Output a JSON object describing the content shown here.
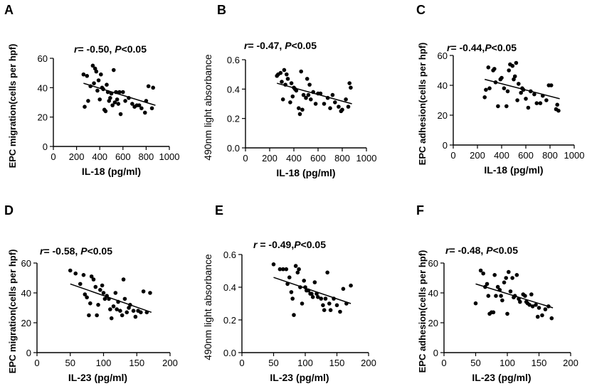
{
  "chart_data": [
    {
      "panel": "A",
      "type": "scatter",
      "stat_text": {
        "r_label": "r",
        "r_value": "= -0.50, ",
        "p_label": "P",
        "p_value": "<0.05"
      },
      "xlabel": "IL-18 (pg/ml)",
      "ylabel": "EPC migration(cells per hpf)",
      "xlim": [
        0,
        1000
      ],
      "ylim": [
        0,
        60
      ],
      "xticks": [
        0,
        200,
        400,
        600,
        800,
        1000
      ],
      "yticks": [
        0,
        20,
        40,
        60
      ],
      "fit": [
        [
          260,
          43
        ],
        [
          880,
          28
        ]
      ],
      "points": [
        [
          260,
          49
        ],
        [
          270,
          27
        ],
        [
          290,
          48
        ],
        [
          300,
          31
        ],
        [
          320,
          41
        ],
        [
          340,
          55
        ],
        [
          350,
          43
        ],
        [
          360,
          53
        ],
        [
          370,
          51
        ],
        [
          380,
          38
        ],
        [
          390,
          45
        ],
        [
          400,
          32
        ],
        [
          410,
          49
        ],
        [
          420,
          40
        ],
        [
          430,
          39
        ],
        [
          440,
          25
        ],
        [
          450,
          24
        ],
        [
          460,
          42
        ],
        [
          470,
          37
        ],
        [
          480,
          31
        ],
        [
          490,
          33
        ],
        [
          500,
          36
        ],
        [
          510,
          28
        ],
        [
          520,
          52
        ],
        [
          530,
          30
        ],
        [
          540,
          37
        ],
        [
          550,
          32
        ],
        [
          560,
          29
        ],
        [
          570,
          37
        ],
        [
          580,
          22
        ],
        [
          600,
          37
        ],
        [
          620,
          31
        ],
        [
          650,
          33
        ],
        [
          680,
          29
        ],
        [
          700,
          27
        ],
        [
          720,
          28
        ],
        [
          740,
          28
        ],
        [
          760,
          26
        ],
        [
          790,
          23
        ],
        [
          800,
          31
        ],
        [
          820,
          41
        ],
        [
          850,
          26
        ],
        [
          860,
          40
        ]
      ]
    },
    {
      "panel": "B",
      "type": "scatter",
      "stat_text": {
        "r_label": "r",
        "r_value": "= -0.47, ",
        "p_label": "P",
        "p_value": "<0.05"
      },
      "xlabel": "IL-18 (pg/ml)",
      "ylabel": "490nm light absorbance",
      "xlim": [
        0,
        1000
      ],
      "ylim": [
        0,
        0.6
      ],
      "xticks": [
        0,
        200,
        400,
        600,
        800,
        1000
      ],
      "yticks": [
        0.0,
        0.2,
        0.4,
        0.6
      ],
      "fit": [
        [
          260,
          0.44
        ],
        [
          880,
          0.3
        ]
      ],
      "points": [
        [
          260,
          0.49
        ],
        [
          270,
          0.5
        ],
        [
          290,
          0.51
        ],
        [
          300,
          0.45
        ],
        [
          310,
          0.33
        ],
        [
          320,
          0.53
        ],
        [
          330,
          0.43
        ],
        [
          340,
          0.5
        ],
        [
          350,
          0.47
        ],
        [
          370,
          0.31
        ],
        [
          380,
          0.44
        ],
        [
          390,
          0.35
        ],
        [
          400,
          0.41
        ],
        [
          410,
          0.4
        ],
        [
          420,
          0.39
        ],
        [
          440,
          0.27
        ],
        [
          450,
          0.23
        ],
        [
          460,
          0.52
        ],
        [
          470,
          0.26
        ],
        [
          480,
          0.36
        ],
        [
          500,
          0.34
        ],
        [
          510,
          0.47
        ],
        [
          520,
          0.36
        ],
        [
          530,
          0.43
        ],
        [
          540,
          0.33
        ],
        [
          560,
          0.38
        ],
        [
          580,
          0.3
        ],
        [
          600,
          0.37
        ],
        [
          620,
          0.37
        ],
        [
          650,
          0.3
        ],
        [
          680,
          0.34
        ],
        [
          700,
          0.27
        ],
        [
          720,
          0.36
        ],
        [
          740,
          0.31
        ],
        [
          770,
          0.28
        ],
        [
          790,
          0.25
        ],
        [
          800,
          0.26
        ],
        [
          830,
          0.33
        ],
        [
          850,
          0.28
        ],
        [
          860,
          0.44
        ],
        [
          870,
          0.41
        ]
      ]
    },
    {
      "panel": "C",
      "type": "scatter",
      "stat_text": {
        "r_label": "r",
        "r_value": "= -0.44,",
        "p_label": "P",
        "p_value": "<0.05"
      },
      "xlabel": "IL-18 (pg/ml)",
      "ylabel": "EPC adhesion(cells per hpf)",
      "xlim": [
        0,
        1000
      ],
      "ylim": [
        0,
        60
      ],
      "xticks": [
        0,
        200,
        400,
        600,
        800,
        1000
      ],
      "yticks": [
        0,
        20,
        40,
        60
      ],
      "fit": [
        [
          260,
          44
        ],
        [
          880,
          31
        ]
      ],
      "points": [
        [
          260,
          32
        ],
        [
          270,
          37
        ],
        [
          290,
          52
        ],
        [
          300,
          38
        ],
        [
          330,
          50
        ],
        [
          340,
          51
        ],
        [
          350,
          42
        ],
        [
          370,
          26
        ],
        [
          390,
          44
        ],
        [
          400,
          45
        ],
        [
          420,
          38
        ],
        [
          440,
          26
        ],
        [
          450,
          36
        ],
        [
          460,
          50
        ],
        [
          470,
          54
        ],
        [
          490,
          53
        ],
        [
          500,
          44
        ],
        [
          510,
          46
        ],
        [
          520,
          55
        ],
        [
          530,
          30
        ],
        [
          540,
          41
        ],
        [
          560,
          35
        ],
        [
          570,
          38
        ],
        [
          580,
          37
        ],
        [
          600,
          31
        ],
        [
          620,
          25
        ],
        [
          640,
          36
        ],
        [
          670,
          34
        ],
        [
          690,
          28
        ],
        [
          720,
          28
        ],
        [
          740,
          33
        ],
        [
          770,
          30
        ],
        [
          790,
          40
        ],
        [
          810,
          40
        ],
        [
          850,
          24
        ],
        [
          860,
          27
        ],
        [
          870,
          23
        ]
      ]
    },
    {
      "panel": "D",
      "type": "scatter",
      "stat_text": {
        "r_label": "r",
        "r_value": "= -0.58, ",
        "p_label": "P",
        "p_value": "<0.05"
      },
      "xlabel": "IL-23 (pg/ml)",
      "ylabel": "EPC migration(cells per hpf)",
      "xlim": [
        0,
        200
      ],
      "ylim": [
        0,
        60
      ],
      "xticks": [
        0,
        50,
        100,
        150,
        200
      ],
      "yticks": [
        0,
        20,
        40,
        60
      ],
      "fit": [
        [
          50,
          46
        ],
        [
          172,
          27
        ]
      ],
      "points": [
        [
          50,
          55
        ],
        [
          58,
          53
        ],
        [
          65,
          46
        ],
        [
          70,
          52
        ],
        [
          72,
          39
        ],
        [
          75,
          37
        ],
        [
          78,
          25
        ],
        [
          80,
          33
        ],
        [
          82,
          51
        ],
        [
          85,
          49
        ],
        [
          88,
          44
        ],
        [
          90,
          25
        ],
        [
          92,
          32
        ],
        [
          95,
          42
        ],
        [
          98,
          45
        ],
        [
          100,
          40
        ],
        [
          102,
          36
        ],
        [
          105,
          38
        ],
        [
          108,
          36
        ],
        [
          110,
          29
        ],
        [
          112,
          23
        ],
        [
          115,
          31
        ],
        [
          118,
          40
        ],
        [
          120,
          29
        ],
        [
          122,
          34
        ],
        [
          125,
          28
        ],
        [
          128,
          25
        ],
        [
          130,
          49
        ],
        [
          132,
          36
        ],
        [
          135,
          27
        ],
        [
          138,
          30
        ],
        [
          140,
          32
        ],
        [
          145,
          28
        ],
        [
          148,
          24
        ],
        [
          152,
          28
        ],
        [
          156,
          27
        ],
        [
          160,
          41
        ],
        [
          165,
          27
        ],
        [
          170,
          40
        ]
      ]
    },
    {
      "panel": "E",
      "type": "scatter",
      "stat_text": {
        "r_label": "r",
        "r_value": " = -0.49,",
        "p_label": "P",
        "p_value": "<0.05"
      },
      "xlabel": "IL-23 (pg/ml)",
      "ylabel": "490nm light absorbance",
      "xlim": [
        0,
        200
      ],
      "ylim": [
        0,
        0.6
      ],
      "xticks": [
        0,
        50,
        100,
        150,
        200
      ],
      "yticks": [
        0.0,
        0.2,
        0.4,
        0.6
      ],
      "fit": [
        [
          50,
          0.46
        ],
        [
          172,
          0.3
        ]
      ],
      "points": [
        [
          50,
          0.54
        ],
        [
          60,
          0.51
        ],
        [
          65,
          0.51
        ],
        [
          70,
          0.51
        ],
        [
          72,
          0.42
        ],
        [
          75,
          0.46
        ],
        [
          78,
          0.37
        ],
        [
          80,
          0.33
        ],
        [
          82,
          0.23
        ],
        [
          85,
          0.53
        ],
        [
          88,
          0.49
        ],
        [
          90,
          0.51
        ],
        [
          92,
          0.4
        ],
        [
          95,
          0.3
        ],
        [
          98,
          0.44
        ],
        [
          100,
          0.4
        ],
        [
          102,
          0.38
        ],
        [
          105,
          0.38
        ],
        [
          108,
          0.36
        ],
        [
          110,
          0.36
        ],
        [
          112,
          0.34
        ],
        [
          115,
          0.43
        ],
        [
          118,
          0.36
        ],
        [
          120,
          0.34
        ],
        [
          125,
          0.33
        ],
        [
          128,
          0.29
        ],
        [
          130,
          0.26
        ],
        [
          132,
          0.33
        ],
        [
          135,
          0.49
        ],
        [
          138,
          0.3
        ],
        [
          140,
          0.26
        ],
        [
          145,
          0.33
        ],
        [
          150,
          0.29
        ],
        [
          155,
          0.25
        ],
        [
          160,
          0.39
        ],
        [
          165,
          0.3
        ],
        [
          172,
          0.41
        ]
      ]
    },
    {
      "panel": "F",
      "type": "scatter",
      "stat_text": {
        "r_label": "r",
        "r_value": "= -0.48, ",
        "p_label": "P",
        "p_value": "<0.05"
      },
      "xlabel": "IL-23 (pg/ml)",
      "ylabel": "EPC adhesion(cells per hpf)",
      "xlim": [
        0,
        200
      ],
      "ylim": [
        0,
        60
      ],
      "xticks": [
        0,
        50,
        100,
        150,
        200
      ],
      "yticks": [
        0,
        20,
        40,
        60
      ],
      "fit": [
        [
          50,
          46
        ],
        [
          172,
          30
        ]
      ],
      "points": [
        [
          50,
          33
        ],
        [
          58,
          55
        ],
        [
          62,
          53
        ],
        [
          65,
          44
        ],
        [
          68,
          46
        ],
        [
          70,
          38
        ],
        [
          72,
          26
        ],
        [
          75,
          27
        ],
        [
          78,
          27
        ],
        [
          80,
          52
        ],
        [
          82,
          38
        ],
        [
          85,
          44
        ],
        [
          88,
          42
        ],
        [
          90,
          38
        ],
        [
          92,
          35
        ],
        [
          95,
          47
        ],
        [
          98,
          50
        ],
        [
          100,
          26
        ],
        [
          102,
          54
        ],
        [
          105,
          41
        ],
        [
          108,
          50
        ],
        [
          110,
          37
        ],
        [
          112,
          38
        ],
        [
          115,
          52
        ],
        [
          118,
          36
        ],
        [
          120,
          34
        ],
        [
          125,
          39
        ],
        [
          128,
          38
        ],
        [
          130,
          34
        ],
        [
          132,
          33
        ],
        [
          135,
          32
        ],
        [
          138,
          39
        ],
        [
          140,
          31
        ],
        [
          145,
          32
        ],
        [
          148,
          24
        ],
        [
          150,
          30
        ],
        [
          155,
          25
        ],
        [
          160,
          29
        ],
        [
          165,
          31
        ],
        [
          170,
          23
        ]
      ]
    }
  ]
}
